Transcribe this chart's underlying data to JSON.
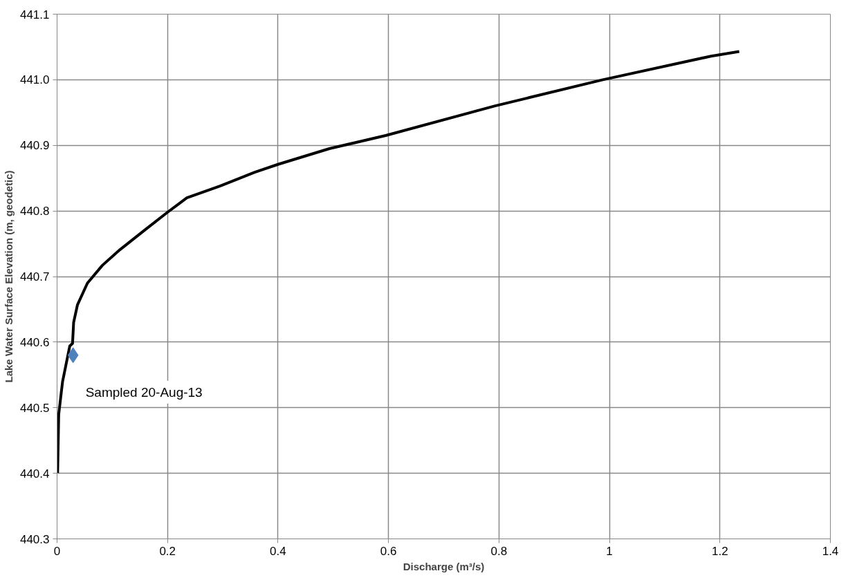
{
  "chart_data": {
    "type": "line",
    "xlabel": "Discharge (m³/s)",
    "ylabel": "Lake Water Surface Elevation (m, geodetic)",
    "xlim": [
      0,
      1.4
    ],
    "xticks": [
      0,
      0.2,
      0.4,
      0.6,
      0.8,
      1,
      1.2,
      1.4
    ],
    "ylim": [
      440.3,
      441.1
    ],
    "yticks": [
      440.3,
      440.4,
      440.5,
      440.6,
      440.7,
      440.8,
      440.9,
      {
        "value": 441,
        "label": "441.0"
      },
      441.1
    ],
    "grid": true,
    "series": [
      {
        "color": "#000000",
        "marker": "none",
        "line_style": "solid",
        "x": [
          0.001,
          0.003,
          0.01,
          0.023,
          0.028,
          0.03,
          0.037,
          0.055,
          0.082,
          0.114,
          0.159,
          0.2,
          0.235,
          0.295,
          0.358,
          0.4,
          0.493,
          0.595,
          0.792,
          0.988,
          1.184,
          1.235
        ],
        "values": [
          440.4,
          440.49,
          440.54,
          440.594,
          440.598,
          440.63,
          440.657,
          440.69,
          440.717,
          440.741,
          440.771,
          440.798,
          440.82,
          440.838,
          440.859,
          440.871,
          440.895,
          440.915,
          440.96,
          441.0,
          441.036,
          441.043
        ]
      },
      {
        "type": "scatter",
        "color": "#4f81bd",
        "marker": "diamond",
        "x": [
          0.029
        ],
        "values": [
          440.58
        ]
      }
    ],
    "annotations": [
      {
        "text": "Sampled 20-Aug-13",
        "x": 0.029,
        "y": 440.58
      }
    ]
  }
}
